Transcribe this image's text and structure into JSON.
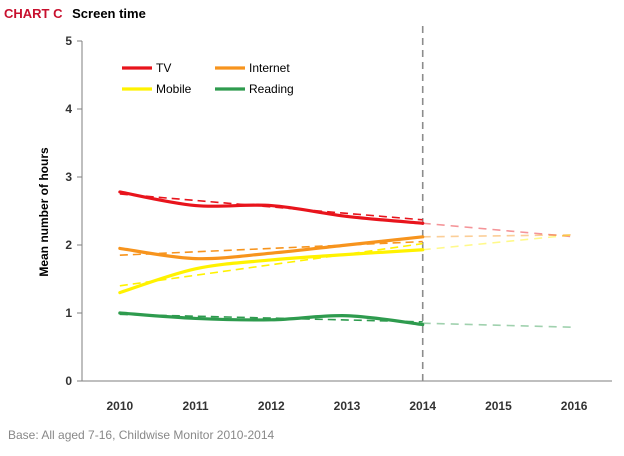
{
  "header": {
    "label": "CHART C",
    "title": "Screen time"
  },
  "footnote": "Base: All aged 7-16, Childwise Monitor 2010-2014",
  "chart_data": {
    "type": "line",
    "ylabel": "Mean number of hours",
    "xlabel": "",
    "x": [
      2010,
      2011,
      2012,
      2013,
      2014,
      2015,
      2016
    ],
    "ylim": [
      0,
      5
    ],
    "yticks": [
      0,
      1,
      2,
      3,
      4,
      5
    ],
    "xlim": [
      2009.5,
      2016.5
    ],
    "divider_x": 2014,
    "grid": false,
    "legend_placement": "top-left",
    "series": [
      {
        "name": "TV",
        "color": "#e8141c",
        "actual": {
          "x": [
            2010,
            2011,
            2012,
            2013,
            2014
          ],
          "y": [
            2.78,
            2.58,
            2.58,
            2.42,
            2.32
          ]
        },
        "trend": {
          "x": [
            2010,
            2014
          ],
          "y": [
            2.75,
            2.37
          ]
        },
        "forecast": {
          "x": [
            2014,
            2016
          ],
          "y": [
            2.32,
            2.12
          ]
        }
      },
      {
        "name": "Internet",
        "color": "#f7941d",
        "actual": {
          "x": [
            2010,
            2011,
            2012,
            2013,
            2014
          ],
          "y": [
            1.95,
            1.8,
            1.88,
            2.0,
            2.12
          ]
        },
        "trend": {
          "x": [
            2010,
            2014
          ],
          "y": [
            1.85,
            2.05
          ]
        },
        "forecast": {
          "x": [
            2014,
            2016
          ],
          "y": [
            2.12,
            2.15
          ]
        }
      },
      {
        "name": "Mobile",
        "color": "#fff200",
        "actual": {
          "x": [
            2010,
            2011,
            2012,
            2013,
            2014
          ],
          "y": [
            1.3,
            1.65,
            1.78,
            1.86,
            1.93
          ]
        },
        "trend": {
          "x": [
            2010,
            2014
          ],
          "y": [
            1.4,
            2.02
          ]
        },
        "forecast": {
          "x": [
            2014,
            2016
          ],
          "y": [
            1.93,
            2.15
          ]
        }
      },
      {
        "name": "Reading",
        "color": "#2e9b4e",
        "actual": {
          "x": [
            2010,
            2011,
            2012,
            2013,
            2014
          ],
          "y": [
            1.0,
            0.92,
            0.9,
            0.96,
            0.83
          ]
        },
        "trend": {
          "x": [
            2010,
            2014
          ],
          "y": [
            0.98,
            0.87
          ]
        },
        "forecast": {
          "x": [
            2014,
            2016
          ],
          "y": [
            0.85,
            0.79
          ]
        }
      }
    ]
  }
}
